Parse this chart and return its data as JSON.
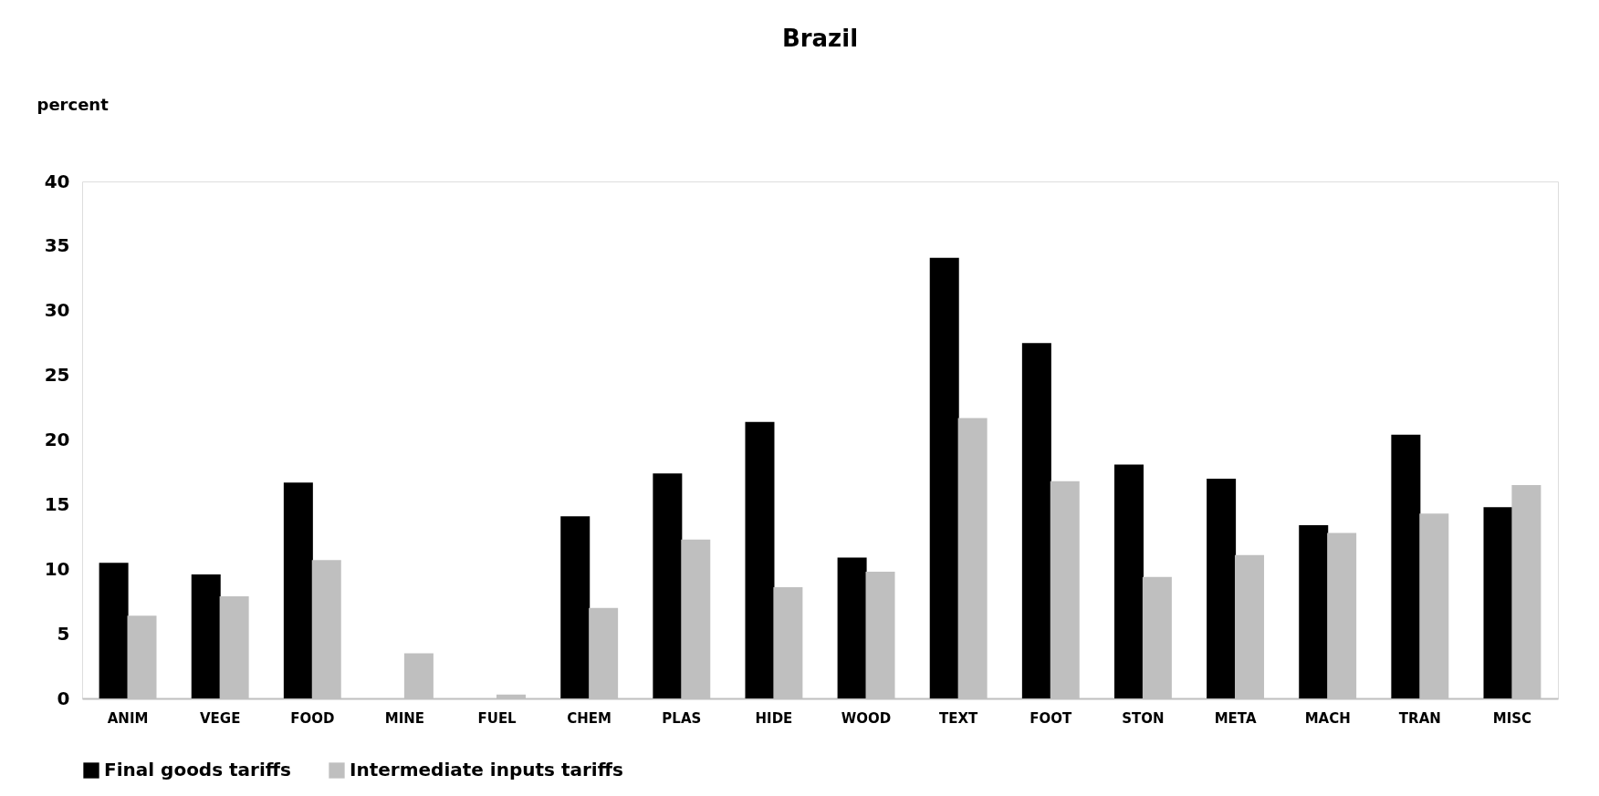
{
  "chart_data": {
    "type": "bar",
    "title": "Brazil",
    "ylabel": "percent",
    "categories": [
      "ANIM",
      "VEGE",
      "FOOD",
      "MINE",
      "FUEL",
      "CHEM",
      "PLAS",
      "HIDE",
      "WOOD",
      "TEXT",
      "FOOT",
      "STON",
      "META",
      "MACH",
      "TRAN",
      "MISC"
    ],
    "series": [
      {
        "name": "Final goods tariffs",
        "color": "#000000",
        "values": [
          10.5,
          9.6,
          16.7,
          0,
          0,
          14.1,
          17.4,
          21.4,
          10.9,
          34.1,
          27.5,
          18.1,
          17.0,
          13.4,
          20.4,
          14.8
        ]
      },
      {
        "name": "Intermediate inputs tariffs",
        "color": "#bfbfbf",
        "values": [
          6.4,
          7.9,
          10.7,
          3.5,
          0.3,
          7.0,
          12.3,
          8.6,
          9.8,
          21.7,
          16.8,
          9.4,
          11.1,
          12.8,
          14.3,
          16.5
        ]
      }
    ],
    "ylim": [
      0,
      40
    ],
    "yticks": [
      0,
      5,
      10,
      15,
      20,
      25,
      30,
      35,
      40
    ],
    "grid": false,
    "legend": "bottom"
  }
}
